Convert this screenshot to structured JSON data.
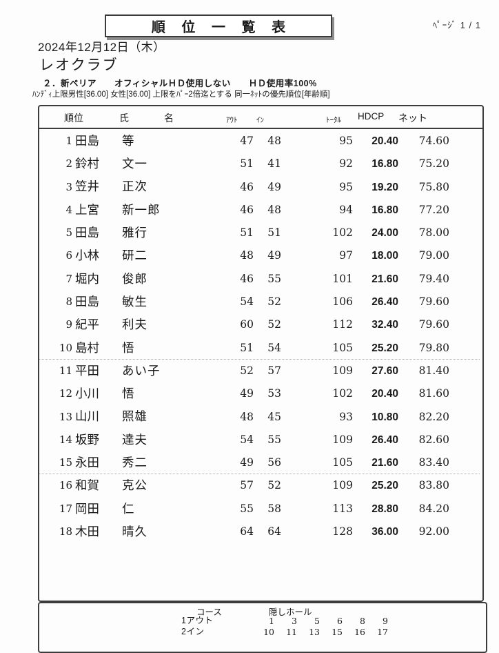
{
  "header": {
    "title": "順 位 一 覧 表",
    "page_label": "ﾍﾟｰｼﾞ 1 / 1",
    "date": "2024年12月12日（木）",
    "club": "レオクラブ",
    "method_line": "２．新ペリア　　オフィシャルＨＤ使用しない　　ＨＤ使用率100%",
    "handicap_line": "ﾊﾝﾃﾞｨ上限男性[36.00] 女性[36.00] 上限をﾊﾟｰ2倍迄とする 同一ﾈｯﾄの優先順位[年齢順]"
  },
  "table": {
    "headers": {
      "rank": "順位",
      "name_sei": "氏",
      "name_mei": "名",
      "out": "ｱｳﾄ",
      "in": "ｲﾝ",
      "total": "ﾄｰﾀﾙ",
      "hdcp": "HDCP",
      "net": "ネット"
    },
    "group_breaks_after_ranks": [
      10,
      15
    ],
    "rows": [
      {
        "rank": "1",
        "surname": "田島",
        "given": "等",
        "out": "47",
        "in": "48",
        "total": "95",
        "hdcp": "20.40",
        "net": "74.60"
      },
      {
        "rank": "2",
        "surname": "鈴村",
        "given": "文一",
        "out": "51",
        "in": "41",
        "total": "92",
        "hdcp": "16.80",
        "net": "75.20"
      },
      {
        "rank": "3",
        "surname": "笠井",
        "given": "正次",
        "out": "46",
        "in": "49",
        "total": "95",
        "hdcp": "19.20",
        "net": "75.80"
      },
      {
        "rank": "4",
        "surname": "上宮",
        "given": "新一郎",
        "out": "46",
        "in": "48",
        "total": "94",
        "hdcp": "16.80",
        "net": "77.20"
      },
      {
        "rank": "5",
        "surname": "田島",
        "given": "雅行",
        "out": "51",
        "in": "51",
        "total": "102",
        "hdcp": "24.00",
        "net": "78.00"
      },
      {
        "rank": "6",
        "surname": "小林",
        "given": "研二",
        "out": "48",
        "in": "49",
        "total": "97",
        "hdcp": "18.00",
        "net": "79.00"
      },
      {
        "rank": "7",
        "surname": "堀内",
        "given": "俊郎",
        "out": "46",
        "in": "55",
        "total": "101",
        "hdcp": "21.60",
        "net": "79.40"
      },
      {
        "rank": "8",
        "surname": "田島",
        "given": "敏生",
        "out": "54",
        "in": "52",
        "total": "106",
        "hdcp": "26.40",
        "net": "79.60"
      },
      {
        "rank": "9",
        "surname": "紀平",
        "given": "利夫",
        "out": "60",
        "in": "52",
        "total": "112",
        "hdcp": "32.40",
        "net": "79.60"
      },
      {
        "rank": "10",
        "surname": "島村",
        "given": "悟",
        "out": "51",
        "in": "54",
        "total": "105",
        "hdcp": "25.20",
        "net": "79.80"
      },
      {
        "rank": "11",
        "surname": "平田",
        "given": "あい子",
        "out": "52",
        "in": "57",
        "total": "109",
        "hdcp": "27.60",
        "net": "81.40"
      },
      {
        "rank": "12",
        "surname": "小川",
        "given": "悟",
        "out": "49",
        "in": "53",
        "total": "102",
        "hdcp": "20.40",
        "net": "81.60"
      },
      {
        "rank": "13",
        "surname": "山川",
        "given": "照雄",
        "out": "48",
        "in": "45",
        "total": "93",
        "hdcp": "10.80",
        "net": "82.20"
      },
      {
        "rank": "14",
        "surname": "坂野",
        "given": "達夫",
        "out": "54",
        "in": "55",
        "total": "109",
        "hdcp": "26.40",
        "net": "82.60"
      },
      {
        "rank": "15",
        "surname": "永田",
        "given": "秀二",
        "out": "49",
        "in": "56",
        "total": "105",
        "hdcp": "21.60",
        "net": "83.40"
      },
      {
        "rank": "16",
        "surname": "和賀",
        "given": "克公",
        "out": "57",
        "in": "52",
        "total": "109",
        "hdcp": "25.20",
        "net": "83.80"
      },
      {
        "rank": "17",
        "surname": "岡田",
        "given": "仁",
        "out": "55",
        "in": "58",
        "total": "113",
        "hdcp": "28.80",
        "net": "84.20"
      },
      {
        "rank": "18",
        "surname": "木田",
        "given": "晴久",
        "out": "64",
        "in": "64",
        "total": "128",
        "hdcp": "36.00",
        "net": "92.00"
      }
    ]
  },
  "footer": {
    "course_header": "コース",
    "hidden_holes_header": "隠しホール",
    "rows": [
      {
        "label": "1アウト",
        "holes": [
          "1",
          "3",
          "5",
          "6",
          "8",
          "9"
        ]
      },
      {
        "label": "2イン",
        "holes": [
          "10",
          "11",
          "13",
          "15",
          "16",
          "17"
        ]
      }
    ]
  },
  "colors": {
    "ink": "#1a1a1a",
    "border": "#3c3c3c",
    "shadow": "#8d8d8d",
    "paper": "#fdfdfd"
  }
}
